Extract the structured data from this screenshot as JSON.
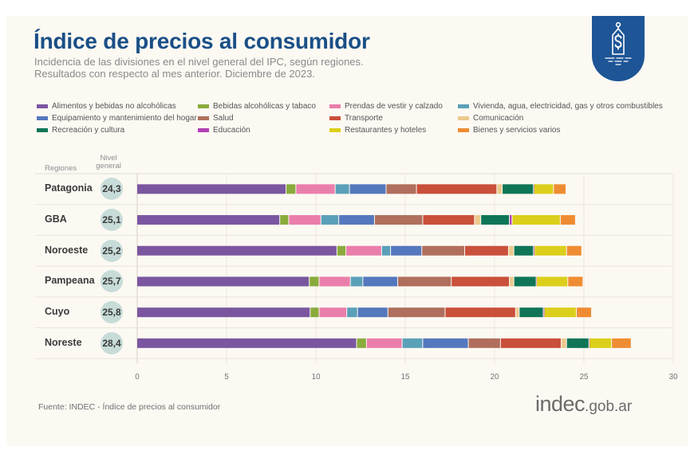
{
  "header": {
    "title": "Índice de precios al consumidor",
    "subtitle_line1": "Incidencia de las divisiones en el nivel general del IPC, según regiones.",
    "subtitle_line2": "Resultados con respecto al mes anterior. Diciembre de 2023.",
    "badge_icon": "price-tag-dollar-icon"
  },
  "table_headers": {
    "regions": "Regiones",
    "nivel_line1": "Nivel",
    "nivel_line2": "general"
  },
  "footer": {
    "source": "Fuente: INDEC - Índice de precios al consumidor",
    "logo_main": "indec",
    "logo_domain": ".gob.ar"
  },
  "chart_data": {
    "type": "bar",
    "orientation": "horizontal",
    "stacked": true,
    "title": "Índice de precios al consumidor",
    "xlabel": "",
    "ylabel": "Regiones",
    "xlim": [
      0,
      30
    ],
    "xticks": [
      "0",
      "5",
      "10",
      "15",
      "20",
      "25",
      "30"
    ],
    "grid": true,
    "legend_position": "top",
    "categories": [
      "Patagonia",
      "GBA",
      "Noroeste",
      "Pampeana",
      "Cuyo",
      "Noreste"
    ],
    "nivel_general": [
      "24,3",
      "25,1",
      "25,2",
      "25,7",
      "25,8",
      "28,4"
    ],
    "series": [
      {
        "name": "Alimentos y bebidas no alcohólicas",
        "color": "#7b56a0",
        "values": [
          8.35,
          8.0,
          11.2,
          9.65,
          9.7,
          12.3
        ]
      },
      {
        "name": "Bebidas alcohólicas y tabaco",
        "color": "#8aab3c",
        "values": [
          0.55,
          0.5,
          0.5,
          0.55,
          0.5,
          0.55
        ]
      },
      {
        "name": "Prendas de vestir y calzado",
        "color": "#ea7eab",
        "values": [
          2.2,
          1.8,
          2.0,
          1.75,
          1.55,
          2.0
        ]
      },
      {
        "name": "Vivienda, agua, electricidad, gas y otros combustibles",
        "color": "#5aa0b8",
        "values": [
          0.8,
          1.0,
          0.5,
          0.7,
          0.6,
          1.15
        ]
      },
      {
        "name": "Equipamiento y mantenimiento del hogar",
        "color": "#5478bd",
        "values": [
          2.05,
          2.0,
          1.75,
          1.95,
          1.7,
          2.55
        ]
      },
      {
        "name": "Salud",
        "color": "#b06f5c",
        "values": [
          1.7,
          2.7,
          2.4,
          3.0,
          3.2,
          1.8
        ]
      },
      {
        "name": "Transporte",
        "color": "#c9503a",
        "values": [
          4.5,
          2.9,
          2.45,
          3.25,
          3.95,
          3.4
        ]
      },
      {
        "name": "Comunicación",
        "color": "#ecc98d",
        "values": [
          0.3,
          0.35,
          0.3,
          0.25,
          0.2,
          0.3
        ]
      },
      {
        "name": "Recreación y cultura",
        "color": "#0f7557",
        "values": [
          1.75,
          1.6,
          1.1,
          1.25,
          1.35,
          1.25
        ]
      },
      {
        "name": "Educación",
        "color": "#b23fb5",
        "values": [
          0.02,
          0.15,
          0.05,
          0.02,
          0.05,
          0.02
        ]
      },
      {
        "name": "Restaurantes y hoteles",
        "color": "#dccf1b",
        "values": [
          1.1,
          2.7,
          1.8,
          1.75,
          1.8,
          1.25
        ]
      },
      {
        "name": "Bienes y servicios varios",
        "color": "#ef8c33",
        "values": [
          0.7,
          0.85,
          0.85,
          0.85,
          0.85,
          1.1
        ]
      }
    ]
  },
  "legend_order": [
    0,
    1,
    2,
    3,
    4,
    5,
    6,
    7,
    8,
    9,
    10,
    11
  ]
}
